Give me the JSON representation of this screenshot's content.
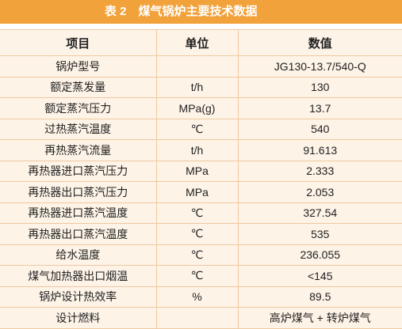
{
  "title": "表 2　煤气锅炉主要技术数据",
  "table": {
    "header": [
      "项目",
      "单位",
      "数值"
    ],
    "rows": [
      [
        "锅炉型号",
        null,
        "JG130-13.7/540-Q"
      ],
      [
        "额定蒸发量",
        "t/h",
        "130"
      ],
      [
        "额定蒸汽压力",
        "MPa(g)",
        "13.7"
      ],
      [
        "过热蒸汽温度",
        "℃",
        "540"
      ],
      [
        "再热蒸汽流量",
        "t/h",
        "91.613"
      ],
      [
        "再热器进口蒸汽压力",
        "MPa",
        "2.333"
      ],
      [
        "再热器出口蒸汽压力",
        "MPa",
        "2.053"
      ],
      [
        "再热器进口蒸汽温度",
        "℃",
        "327.54"
      ],
      [
        "再热器出口蒸汽温度",
        "℃",
        "535"
      ],
      [
        "给水温度",
        "℃",
        "236.055"
      ],
      [
        "煤气加热器出口烟温",
        "℃",
        "<145"
      ],
      [
        "锅炉设计热效率",
        "%",
        "89.5"
      ],
      [
        "设计燃料",
        null,
        "高炉煤气 + 转炉煤气"
      ]
    ]
  }
}
